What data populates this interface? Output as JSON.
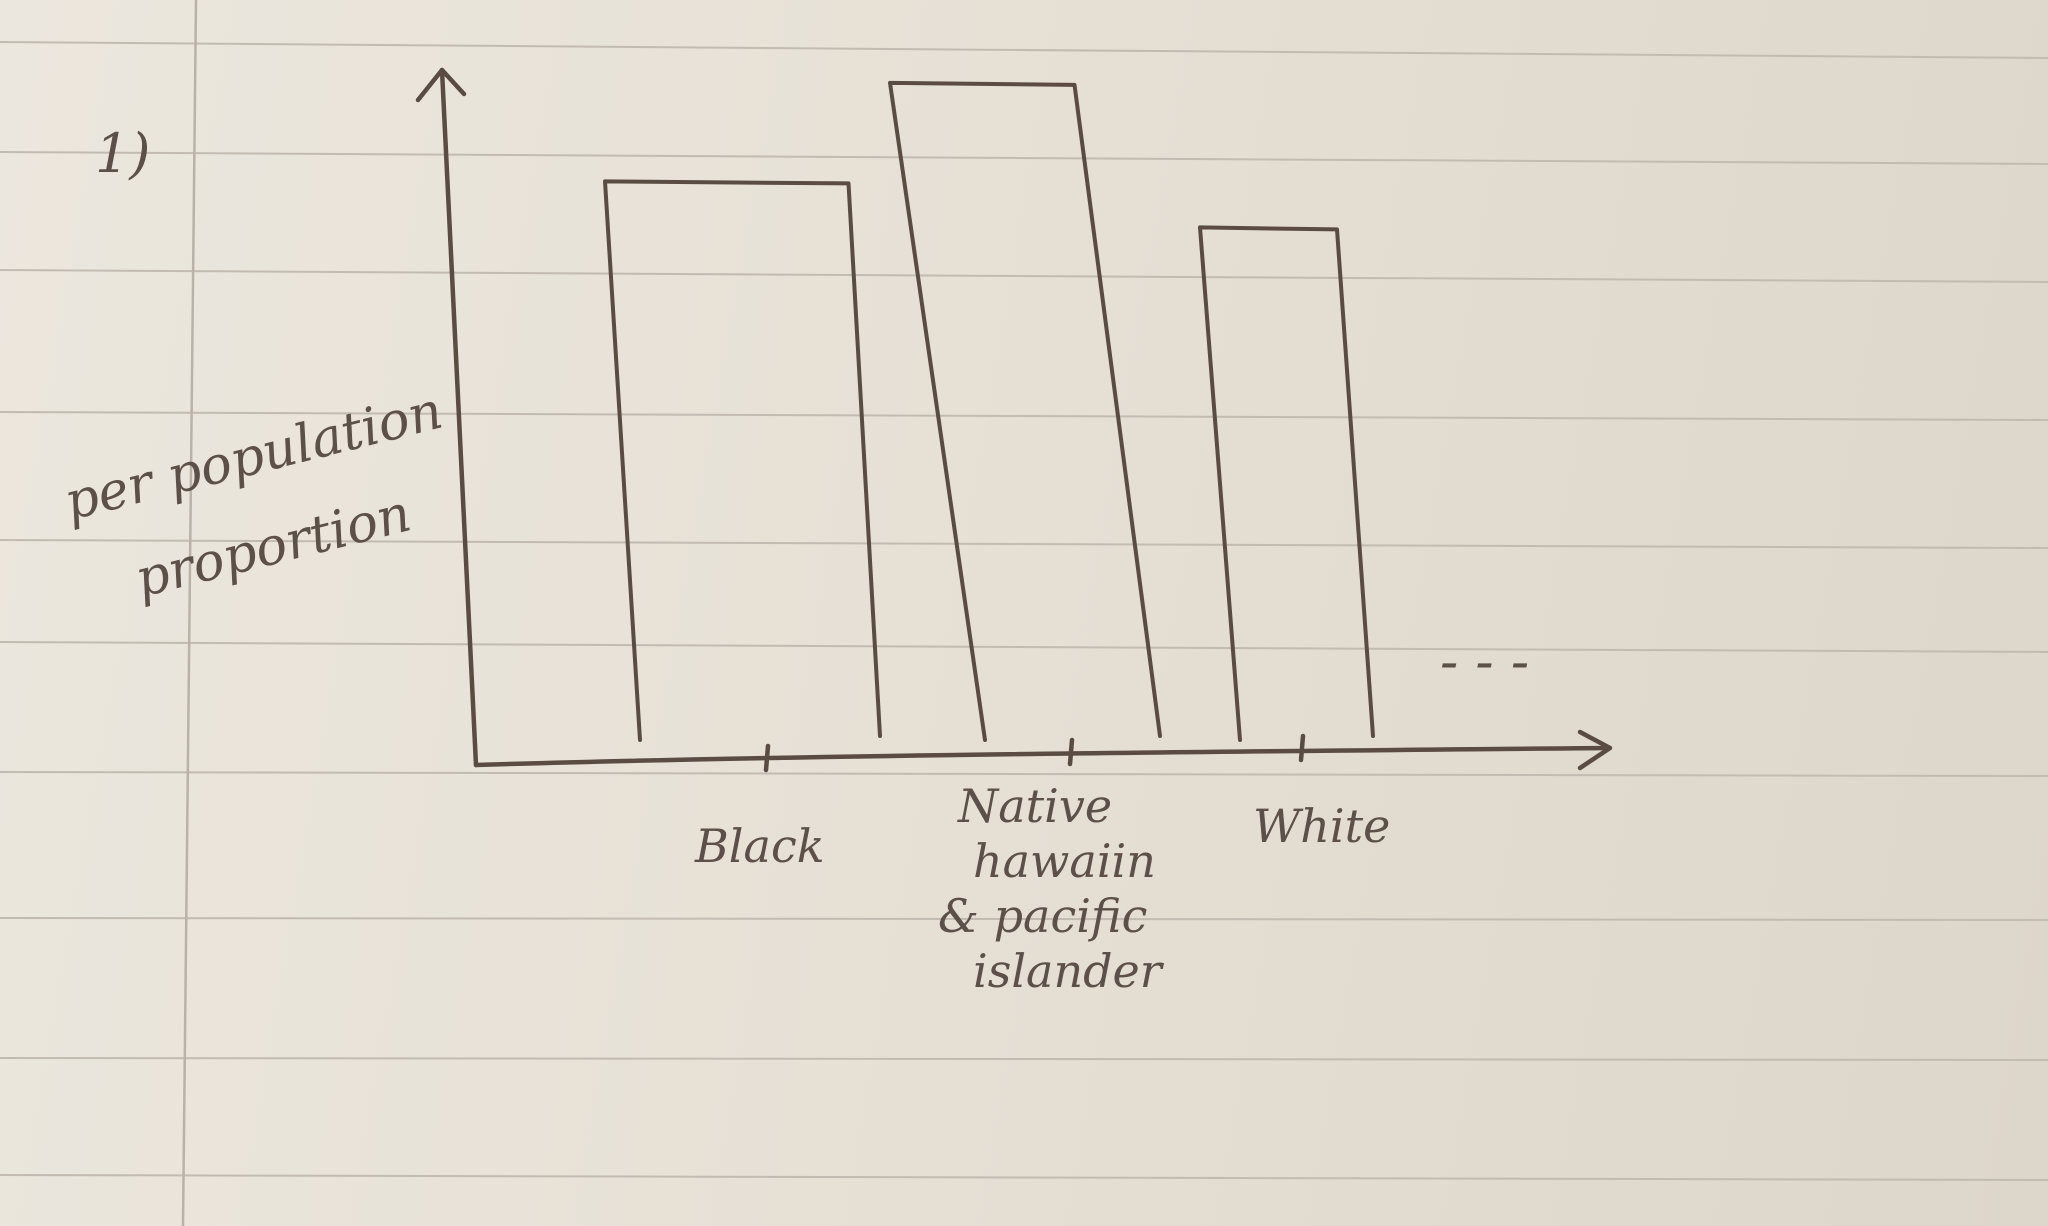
{
  "page": {
    "number_label": "1)",
    "trailing_marks": "- - -",
    "colors": {
      "paper": "#e7e1d6",
      "ink": "#5a4c42",
      "ruled_line": "#c2bbb1"
    }
  },
  "chart_data": {
    "type": "bar",
    "title": "",
    "xlabel": "",
    "ylabel": "per population proportion",
    "ylabel_lines": [
      "per population",
      "proportion"
    ],
    "categories": [
      "Black",
      "Native hawaiin & pacific islander",
      "White"
    ],
    "category_lines": [
      [
        "Black"
      ],
      [
        "Native",
        "hawaiin",
        "& pacific",
        "islander"
      ],
      [
        "White"
      ]
    ],
    "values": [
      0.85,
      1.0,
      0.78
    ],
    "ylim": [
      0,
      1.05
    ],
    "grid": false,
    "legend": "none",
    "continues": true
  }
}
